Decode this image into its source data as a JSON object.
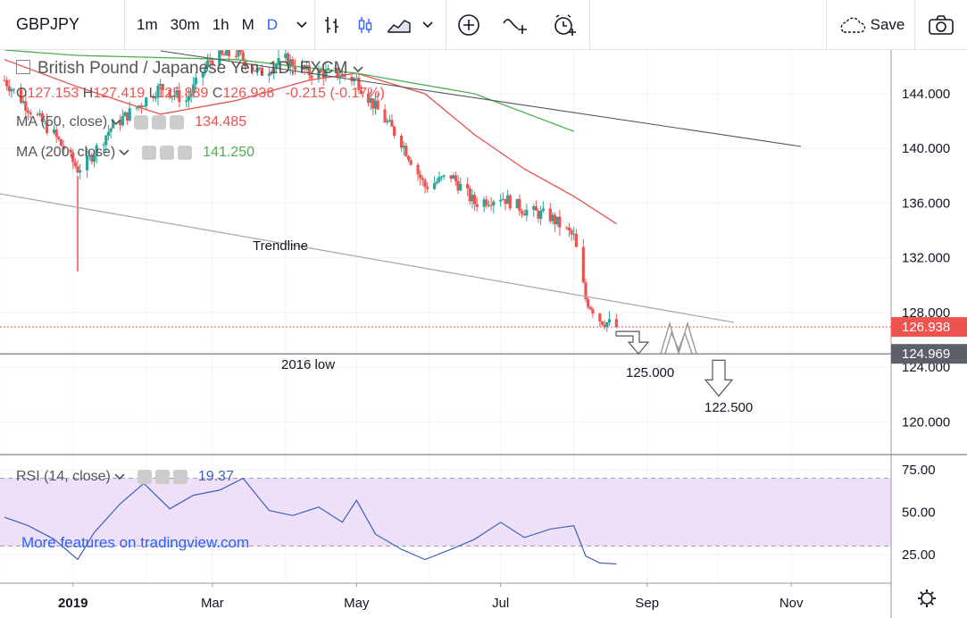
{
  "toolbar": {
    "symbol": "GBPJPY",
    "intervals": [
      {
        "label": "1m",
        "active": false
      },
      {
        "label": "30m",
        "active": false
      },
      {
        "label": "1h",
        "active": false
      },
      {
        "label": "M",
        "active": false
      },
      {
        "label": "D",
        "active": true
      }
    ],
    "save_label": "Save",
    "icons": [
      "chevron-down-icon",
      "bar-style-icon",
      "candle-style-icon",
      "area-style-icon",
      "chevron-down-icon",
      "add-indicator-icon",
      "compare-icon",
      "alert-icon",
      "cloud-icon",
      "camera-icon"
    ]
  },
  "legend": {
    "title": "British Pound / Japanese Yen, 1D, FXCM",
    "ohlc": {
      "o_label": "O",
      "o": "127.153",
      "h_label": "H",
      "h": "127.419",
      "l_label": "L",
      "l": "125.889",
      "c_label": "C",
      "c": "126.938",
      "change": "-0.215 (-0.17%)"
    },
    "ma50": {
      "label": "MA (50, close)",
      "value": "134.485",
      "color": "#e8504f"
    },
    "ma200": {
      "label": "MA (200, close)",
      "value": "141.250",
      "color": "#4caf50"
    }
  },
  "rsi_legend": {
    "label": "RSI (14, close)",
    "value": "19.37"
  },
  "watermark": "More features on tradingview.com",
  "annotations": {
    "trendline": "Trendline",
    "low2016": "2016 low",
    "target1": "125.000",
    "target2": "122.500"
  },
  "price_badges": {
    "last": "126.938",
    "low2016": "124.969"
  },
  "colors": {
    "up": "#26a69a",
    "down": "#ef5350",
    "ma50": "#e8504f",
    "ma200": "#4caf50",
    "rsi": "#3f5fbf",
    "rsi_band": "#ede0f8",
    "accent": "#2962ff"
  },
  "chart_data": [
    {
      "type": "candlestick",
      "title": "British Pound / Japanese Yen, 1D, FXCM",
      "x_ticks": [
        "2019",
        "Mar",
        "May",
        "Jul",
        "Sep",
        "Nov"
      ],
      "y_ticks": [
        120,
        124,
        128,
        132,
        136,
        140,
        144
      ],
      "ylim": [
        117.6,
        147.2
      ],
      "grid": true,
      "series": [
        {
          "name": "GBPJPY close (approx.)",
          "x": [
            "2018-12-03",
            "2018-12-13",
            "2018-12-24",
            "2019-01-03",
            "2019-01-07",
            "2019-01-17",
            "2019-01-28",
            "2019-02-07",
            "2019-02-18",
            "2019-02-28",
            "2019-03-11",
            "2019-03-21",
            "2019-04-01",
            "2019-04-11",
            "2019-04-22",
            "2019-05-01",
            "2019-05-09",
            "2019-05-20",
            "2019-05-30",
            "2019-06-10",
            "2019-06-20",
            "2019-07-01",
            "2019-07-11",
            "2019-07-22",
            "2019-08-01",
            "2019-08-06",
            "2019-08-12",
            "2019-08-19"
          ],
          "values": [
            145.0,
            143.0,
            141.0,
            138.5,
            139.0,
            141.5,
            143.0,
            144.5,
            143.5,
            146.5,
            147.0,
            145.5,
            146.5,
            145.5,
            145.5,
            145.0,
            143.0,
            140.5,
            137.2,
            138.0,
            136.0,
            136.5,
            135.5,
            135.0,
            133.5,
            129.0,
            127.5,
            126.938
          ]
        },
        {
          "name": "MA (50, close)",
          "x": [
            "2018-12-03",
            "2019-01-03",
            "2019-02-07",
            "2019-03-11",
            "2019-04-11",
            "2019-05-01",
            "2019-05-30",
            "2019-06-20",
            "2019-07-11",
            "2019-08-01",
            "2019-08-19"
          ],
          "values": [
            146.5,
            144.5,
            142.5,
            143.5,
            145.0,
            145.5,
            144.0,
            141.0,
            138.5,
            136.5,
            134.485
          ]
        },
        {
          "name": "MA (200, close)",
          "x": [
            "2018-12-03",
            "2019-01-03",
            "2019-03-11",
            "2019-05-01",
            "2019-06-20",
            "2019-08-01"
          ],
          "values": [
            147.2,
            146.8,
            146.5,
            145.5,
            144.0,
            141.25
          ]
        }
      ],
      "levels": [
        {
          "name": "2016 low",
          "value": 124.969
        },
        {
          "name": "last",
          "value": 126.938
        }
      ],
      "targets": [
        125.0,
        122.5
      ]
    },
    {
      "type": "line",
      "title": "RSI (14, close)",
      "y_ticks": [
        25,
        50,
        75
      ],
      "ylim": [
        8,
        83
      ],
      "band": [
        30,
        70
      ],
      "series": [
        {
          "name": "RSI",
          "x": [
            "2018-12-03",
            "2018-12-13",
            "2018-12-24",
            "2019-01-03",
            "2019-01-10",
            "2019-01-21",
            "2019-01-31",
            "2019-02-11",
            "2019-02-21",
            "2019-03-04",
            "2019-03-14",
            "2019-03-25",
            "2019-04-04",
            "2019-04-15",
            "2019-04-25",
            "2019-05-01",
            "2019-05-09",
            "2019-05-20",
            "2019-05-30",
            "2019-06-10",
            "2019-06-20",
            "2019-07-01",
            "2019-07-11",
            "2019-07-22",
            "2019-08-01",
            "2019-08-06",
            "2019-08-12",
            "2019-08-19"
          ],
          "values": [
            47,
            42,
            34,
            22,
            38,
            55,
            67,
            52,
            60,
            63,
            70,
            51,
            48,
            53,
            44,
            57,
            37,
            28,
            22,
            28,
            34,
            44,
            35,
            40,
            42,
            24,
            20,
            19.37
          ]
        }
      ]
    }
  ]
}
